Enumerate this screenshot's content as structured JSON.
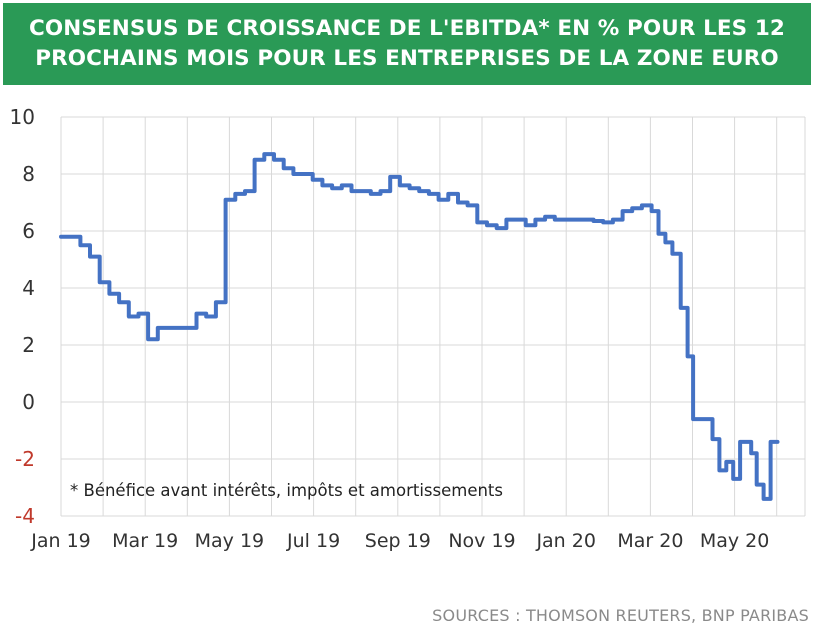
{
  "header": {
    "title": "CONSENSUS DE CROISSANCE DE L'EBITDA*  EN % POUR LES 12 PROCHAINS MOIS POUR LES ENTREPRISES DE LA ZONE EURO"
  },
  "source": "SOURCES : THOMSON REUTERS, BNP PARIBAS",
  "colors": {
    "header_bg": "#2a9a56",
    "line": "#4472c4",
    "negative_tick": "#c0392b"
  },
  "chart_data": {
    "type": "line",
    "title": "",
    "xlabel": "",
    "ylabel": "",
    "ylim": [
      -4,
      10
    ],
    "yticks": [
      10,
      8,
      6,
      4,
      2,
      0,
      -2,
      -4
    ],
    "yticklabels": [
      "10",
      "8",
      "6",
      "4",
      "2",
      "0",
      "-2",
      "-4"
    ],
    "xticklabels": [
      "Jan 19",
      "Mar 19",
      "May 19",
      "Jul 19",
      "Sep 19",
      "Nov 19",
      "Jan 20",
      "Mar 20",
      "May 20"
    ],
    "grid": true,
    "legend": "none",
    "annotation": "* Bénéfice avant intérêts, impôts et amortissements",
    "series": [
      {
        "values": [
          [
            "2019-01-01",
            5.8
          ],
          [
            "2019-01-08",
            5.8
          ],
          [
            "2019-01-15",
            5.5
          ],
          [
            "2019-01-22",
            5.1
          ],
          [
            "2019-01-29",
            4.2
          ],
          [
            "2019-02-05",
            3.8
          ],
          [
            "2019-02-12",
            3.5
          ],
          [
            "2019-02-19",
            3.0
          ],
          [
            "2019-02-26",
            3.1
          ],
          [
            "2019-03-05",
            2.2
          ],
          [
            "2019-03-12",
            2.6
          ],
          [
            "2019-03-19",
            2.6
          ],
          [
            "2019-03-26",
            2.6
          ],
          [
            "2019-04-02",
            2.6
          ],
          [
            "2019-04-09",
            3.1
          ],
          [
            "2019-04-16",
            3.0
          ],
          [
            "2019-04-23",
            3.5
          ],
          [
            "2019-04-30",
            7.1
          ],
          [
            "2019-05-07",
            7.3
          ],
          [
            "2019-05-14",
            7.4
          ],
          [
            "2019-05-21",
            8.5
          ],
          [
            "2019-05-28",
            8.7
          ],
          [
            "2019-06-04",
            8.5
          ],
          [
            "2019-06-11",
            8.2
          ],
          [
            "2019-06-18",
            8.0
          ],
          [
            "2019-06-25",
            8.0
          ],
          [
            "2019-07-02",
            7.8
          ],
          [
            "2019-07-09",
            7.6
          ],
          [
            "2019-07-16",
            7.5
          ],
          [
            "2019-07-23",
            7.6
          ],
          [
            "2019-07-30",
            7.4
          ],
          [
            "2019-08-06",
            7.4
          ],
          [
            "2019-08-13",
            7.3
          ],
          [
            "2019-08-20",
            7.4
          ],
          [
            "2019-08-27",
            7.9
          ],
          [
            "2019-09-03",
            7.6
          ],
          [
            "2019-09-10",
            7.5
          ],
          [
            "2019-09-17",
            7.4
          ],
          [
            "2019-09-24",
            7.3
          ],
          [
            "2019-10-01",
            7.1
          ],
          [
            "2019-10-08",
            7.3
          ],
          [
            "2019-10-15",
            7.0
          ],
          [
            "2019-10-22",
            6.9
          ],
          [
            "2019-10-29",
            6.3
          ],
          [
            "2019-11-05",
            6.2
          ],
          [
            "2019-11-12",
            6.1
          ],
          [
            "2019-11-19",
            6.4
          ],
          [
            "2019-11-26",
            6.4
          ],
          [
            "2019-12-03",
            6.2
          ],
          [
            "2019-12-10",
            6.4
          ],
          [
            "2019-12-17",
            6.5
          ],
          [
            "2019-12-24",
            6.4
          ],
          [
            "2019-12-31",
            6.4
          ],
          [
            "2020-01-07",
            6.4
          ],
          [
            "2020-01-14",
            6.4
          ],
          [
            "2020-01-21",
            6.35
          ],
          [
            "2020-01-28",
            6.3
          ],
          [
            "2020-02-04",
            6.4
          ],
          [
            "2020-02-11",
            6.7
          ],
          [
            "2020-02-18",
            6.8
          ],
          [
            "2020-02-25",
            6.9
          ],
          [
            "2020-03-03",
            6.7
          ],
          [
            "2020-03-08",
            5.9
          ],
          [
            "2020-03-13",
            5.6
          ],
          [
            "2020-03-18",
            5.2
          ],
          [
            "2020-03-24",
            3.3
          ],
          [
            "2020-03-29",
            1.6
          ],
          [
            "2020-04-02",
            -0.6
          ],
          [
            "2020-04-07",
            -0.6
          ],
          [
            "2020-04-12",
            -0.6
          ],
          [
            "2020-04-16",
            -1.3
          ],
          [
            "2020-04-21",
            -2.4
          ],
          [
            "2020-04-26",
            -2.1
          ],
          [
            "2020-05-01",
            -2.7
          ],
          [
            "2020-05-06",
            -1.4
          ],
          [
            "2020-05-11",
            -1.4
          ],
          [
            "2020-05-14",
            -1.8
          ],
          [
            "2020-05-18",
            -2.9
          ],
          [
            "2020-05-23",
            -3.4
          ],
          [
            "2020-05-28",
            -1.4
          ],
          [
            "2020-06-02",
            -1.4
          ]
        ]
      }
    ]
  }
}
